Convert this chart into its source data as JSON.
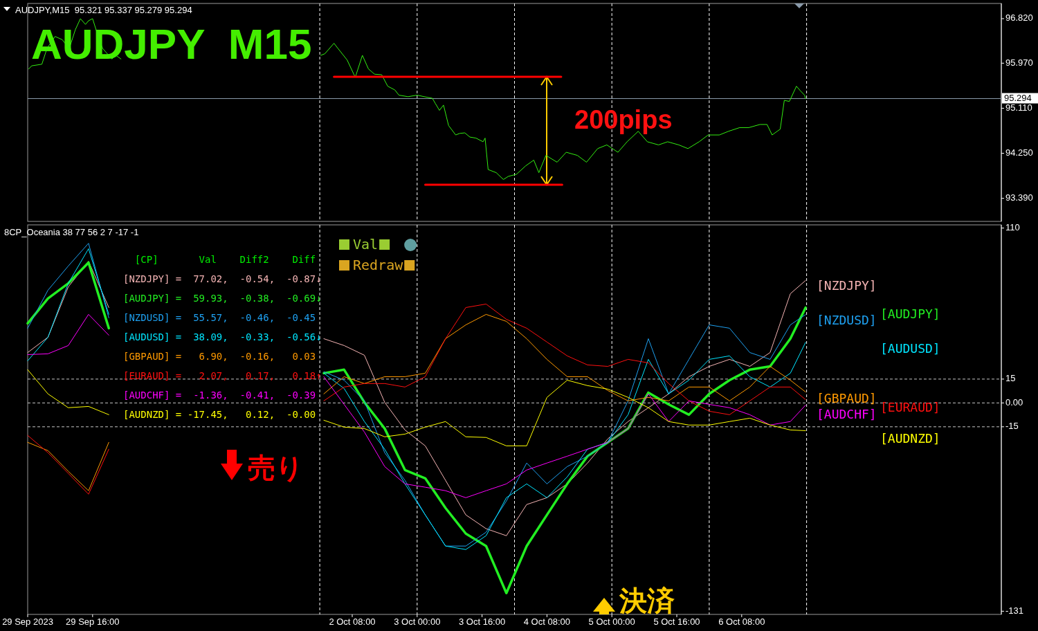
{
  "chart_data": [
    {
      "type": "line",
      "title": "AUDJPY  M15",
      "subtitle": "AUDJPY,M15  95.321 95.337 95.279 95.294",
      "tick_labels": "y",
      "xlim": [
        "2023-09-29T00:00",
        "2023-10-09T00:00"
      ],
      "ylim": [
        92.95,
        97.11
      ],
      "yticks": [
        {
          "value": 96.82,
          "label": "96.820"
        },
        {
          "value": 95.97,
          "label": "95.970"
        },
        {
          "value": 95.11,
          "label": "95.110"
        },
        {
          "value": 94.25,
          "label": "94.250"
        },
        {
          "value": 93.39,
          "label": "93.390"
        }
      ],
      "x": [
        "2023-09-29T00:15",
        "2023-09-29T01:00",
        "2023-09-29T03:30",
        "2023-09-29T04:45",
        "2023-09-29T06:45",
        "2023-09-29T08:30",
        "2023-09-29T10:15",
        "2023-09-29T11:45",
        "2023-09-29T13:00",
        "2023-09-29T14:15",
        "2023-09-29T15:00",
        "2023-09-29T16:00",
        "2023-09-29T17:30",
        "2023-09-29T18:30",
        "2023-09-29T20:45",
        "2023-09-29T21:45",
        "2023-09-29T23:00",
        "2023-10-02T00:15",
        "2023-10-02T01:15",
        "2023-10-02T03:30",
        "2023-10-02T04:30",
        "2023-10-02T06:45",
        "2023-10-02T08:45",
        "2023-10-02T10:30",
        "2023-10-02T12:00",
        "2023-10-02T13:30",
        "2023-10-02T15:15",
        "2023-10-02T16:45",
        "2023-10-02T18:30",
        "2023-10-02T19:30",
        "2023-10-02T21:45",
        "2023-10-03T00:00",
        "2023-10-03T01:45",
        "2023-10-03T03:45",
        "2023-10-03T04:30",
        "2023-10-03T05:30",
        "2023-10-03T06:30",
        "2023-10-03T07:45",
        "2023-10-03T09:30",
        "2023-10-03T10:30",
        "2023-10-03T11:45",
        "2023-10-03T13:00",
        "2023-10-03T14:30",
        "2023-10-03T16:15",
        "2023-10-03T16:45",
        "2023-10-03T17:30",
        "2023-10-03T19:30",
        "2023-10-03T21:15",
        "2023-10-03T22:30",
        "2023-10-04T00:30",
        "2023-10-04T02:45",
        "2023-10-04T04:45",
        "2023-10-04T06:00",
        "2023-10-04T07:45",
        "2023-10-04T10:30",
        "2023-10-04T12:45",
        "2023-10-04T15:30",
        "2023-10-04T17:45",
        "2023-10-04T20:30",
        "2023-10-04T22:45",
        "2023-10-05T01:30",
        "2023-10-05T03:45",
        "2023-10-05T06:30",
        "2023-10-05T08:45",
        "2023-10-05T11:30",
        "2023-10-05T13:45",
        "2023-10-05T16:30",
        "2023-10-05T18:45",
        "2023-10-05T21:30",
        "2023-10-05T23:45",
        "2023-10-06T02:30",
        "2023-10-06T04:45",
        "2023-10-06T07:30",
        "2023-10-06T09:45",
        "2023-10-06T12:30",
        "2023-10-06T14:15",
        "2023-10-06T15:30",
        "2023-10-06T16:45",
        "2023-10-06T17:30",
        "2023-10-06T18:30",
        "2023-10-06T19:45",
        "2023-10-06T21:30",
        "2023-10-06T22:30",
        "2023-10-06T23:30",
        "2023-10-06T23:45"
      ],
      "series": [
        {
          "color": "#33ee11",
          "values": [
            95.86,
            95.92,
            95.95,
            96.25,
            96.48,
            96.42,
            96.25,
            96.61,
            96.82,
            96.71,
            96.78,
            96.82,
            96.45,
            96.25,
            96.05,
            96.12,
            96.05,
            96.12,
            96.15,
            96.35,
            96.25,
            96.03,
            95.7,
            96.12,
            95.86,
            95.76,
            95.75,
            95.53,
            95.46,
            95.36,
            95.33,
            95.36,
            95.33,
            95.3,
            95.2,
            95.07,
            95.17,
            94.78,
            94.6,
            94.63,
            94.64,
            94.56,
            94.54,
            94.47,
            94.54,
            93.94,
            93.88,
            93.75,
            93.81,
            93.85,
            94.01,
            94.12,
            93.88,
            94.21,
            94.08,
            94.27,
            94.21,
            94.08,
            94.34,
            94.41,
            94.27,
            94.47,
            94.67,
            94.47,
            94.41,
            94.47,
            94.41,
            94.34,
            94.47,
            94.6,
            94.6,
            94.67,
            94.74,
            94.74,
            94.8,
            94.8,
            94.6,
            94.67,
            94.71,
            95.26,
            95.24,
            95.53,
            95.44,
            95.36,
            95.294
          ]
        },
        {
          "color": "#ff0000",
          "x": [
            "2023-10-02T03:30",
            "2023-10-04T11:30"
          ],
          "values": [
            95.71,
            95.71
          ]
        },
        {
          "color": "#ff0000",
          "x": [
            "2023-10-03T02:00",
            "2023-10-04T11:45"
          ],
          "values": [
            93.65,
            93.65
          ]
        }
      ],
      "ref_lines": [
        {
          "axis": "y",
          "value": 95.294,
          "label": "95.294",
          "color": "#8a9aaa",
          "line_style": "solid"
        },
        {
          "axis": "x",
          "value": "2023-10-02T00:00",
          "color": "#ffffff",
          "line_style": "dashed"
        },
        {
          "axis": "x",
          "value": "2023-10-03T00:00",
          "color": "#ffffff",
          "line_style": "dashed"
        },
        {
          "axis": "x",
          "value": "2023-10-04T00:00",
          "color": "#ffffff",
          "line_style": "dashed"
        },
        {
          "axis": "x",
          "value": "2023-10-05T00:00",
          "color": "#ffffff",
          "line_style": "dashed"
        },
        {
          "axis": "x",
          "value": "2023-10-06T00:00",
          "color": "#ffffff",
          "line_style": "dashed"
        },
        {
          "axis": "x",
          "value": "2023-10-07T00:00",
          "color": "#ffffff",
          "line_style": "dashed"
        }
      ],
      "annotations": [
        "200pips"
      ]
    },
    {
      "type": "line",
      "subtitle": "8CP_Oceania 38 77 56 2 7 -17 -1",
      "xlim": [
        "2023-09-29T00:00",
        "2023-10-09T00:00"
      ],
      "ylim": [
        -133,
        112
      ],
      "xticks": [
        {
          "value": "2023-09-29T00:00",
          "label": "29 Sep 2023"
        },
        {
          "value": "2023-09-29T16:00",
          "label": "29 Sep 16:00"
        },
        {
          "value": "2023-10-02T08:00",
          "label": "2 Oct 08:00"
        },
        {
          "value": "2023-10-03T00:00",
          "label": "3 Oct 00:00"
        },
        {
          "value": "2023-10-03T16:00",
          "label": "3 Oct 16:00"
        },
        {
          "value": "2023-10-04T08:00",
          "label": "4 Oct 08:00"
        },
        {
          "value": "2023-10-05T00:00",
          "label": "5 Oct 00:00"
        },
        {
          "value": "2023-10-05T16:00",
          "label": "5 Oct 16:00"
        },
        {
          "value": "2023-10-06T08:00",
          "label": "6 Oct 08:00"
        }
      ],
      "yticks": [
        110,
        15,
        {
          "value": 0,
          "label": "0.00"
        },
        -15,
        -131
      ],
      "x": [
        "2023-09-29T00:00",
        "2023-09-29T05:00",
        "2023-09-29T10:00",
        "2023-09-29T15:00",
        "2023-09-29T20:00",
        "2023-10-02T01:00",
        "2023-10-02T06:00",
        "2023-10-02T11:00",
        "2023-10-02T16:00",
        "2023-10-02T21:00",
        "2023-10-03T02:00",
        "2023-10-03T07:00",
        "2023-10-03T12:00",
        "2023-10-03T17:00",
        "2023-10-03T22:00",
        "2023-10-04T03:00",
        "2023-10-04T08:00",
        "2023-10-04T13:00",
        "2023-10-04T18:00",
        "2023-10-04T23:00",
        "2023-10-05T04:00",
        "2023-10-05T09:00",
        "2023-10-05T14:00",
        "2023-10-05T19:00",
        "2023-10-06T00:00",
        "2023-10-06T05:00",
        "2023-10-06T10:00",
        "2023-10-06T15:00",
        "2023-10-06T20:00",
        "2023-10-06T23:45"
      ],
      "series": [
        {
          "name": "[NZDJPY]",
          "color": "#f4b4b4",
          "values": [
            31.7,
            41.3,
            73.0,
            89.1,
            60.0,
            40.4,
            36.1,
            30.0,
            0.4,
            -17.0,
            -27.0,
            -48.7,
            -70.4,
            -79.1,
            -83.5,
            -63.9,
            -59.6,
            -50.9,
            -37.8,
            -22.6,
            -11.7,
            -3.0,
            5.7,
            16.5,
            23.0,
            27.4,
            23.0,
            31.7,
            68.7,
            77.02
          ]
        },
        {
          "name": "[AUDJPY]",
          "color": "#22ee22",
          "values": [
            50.0,
            65.7,
            75.2,
            88.3,
            47.0,
            18.7,
            20.9,
            0.4,
            -16.1,
            -42.2,
            -47.4,
            -66.1,
            -82.2,
            -90.0,
            -119.6,
            -90.0,
            -70.4,
            -50.9,
            -33.5,
            -24.8,
            -16.1,
            6.5,
            -0.9,
            -7.4,
            5.7,
            14.3,
            20.9,
            23.0,
            40.4,
            59.93
          ]
        },
        {
          "name": "[NZDUSD]",
          "color": "#1ea0f0",
          "values": [
            47.0,
            70.9,
            86.1,
            100.4,
            53.5,
            19.6,
            14.3,
            1.3,
            -31.3,
            -48.7,
            -70.4,
            -90.0,
            -90.0,
            -81.3,
            -61.7,
            -37.8,
            -50.9,
            -40.0,
            -33.5,
            -24.8,
            1.3,
            40.4,
            5.7,
            27.4,
            49.1,
            47.0,
            31.7,
            27.4,
            49.1,
            55.57
          ]
        },
        {
          "name": "[AUDUSD]",
          "color": "#00e5ff",
          "values": [
            26.5,
            41.3,
            75.2,
            97.0,
            55.7,
            18.7,
            9.1,
            -11.7,
            -29.1,
            -50.9,
            -70.4,
            -90.0,
            -92.2,
            -83.5,
            -59.6,
            -50.9,
            -59.6,
            -46.5,
            -29.1,
            -24.8,
            -7.4,
            27.4,
            5.7,
            14.3,
            27.4,
            29.6,
            16.5,
            10.0,
            18.7,
            38.09
          ]
        },
        {
          "name": "[GBPAUD]",
          "color": "#ff9900",
          "values": [
            -24.8,
            -30.0,
            -43.0,
            -55.2,
            -24.8,
            5.7,
            16.5,
            12.2,
            16.5,
            16.5,
            18.7,
            40.4,
            49.1,
            55.7,
            51.3,
            40.4,
            27.4,
            16.5,
            16.5,
            7.8,
            1.3,
            3.5,
            1.3,
            10.0,
            10.0,
            1.3,
            10.0,
            23.0,
            14.3,
            6.9
          ]
        },
        {
          "name": "[EURAUD]",
          "color": "#ff1010",
          "values": [
            -20.4,
            -31.3,
            -44.3,
            -57.4,
            -29.1,
            1.3,
            10.0,
            12.2,
            12.2,
            10.0,
            16.5,
            40.4,
            60.0,
            62.2,
            52.6,
            47.0,
            38.3,
            29.6,
            23.9,
            23.0,
            27.4,
            25.2,
            12.2,
            1.3,
            -5.2,
            -7.4,
            1.3,
            10.0,
            10.0,
            2.07
          ]
        },
        {
          "name": "[AUDCHF]",
          "color": "#ff00ff",
          "values": [
            30.4,
            30.9,
            36.1,
            55.7,
            42.6,
            16.5,
            -0.9,
            -18.3,
            -40.0,
            -50.9,
            -53.0,
            -55.2,
            -59.6,
            -55.2,
            -50.9,
            -42.2,
            -37.8,
            -33.5,
            -29.1,
            -24.8,
            -16.1,
            5.7,
            -11.7,
            1.3,
            -0.9,
            -3.0,
            -7.4,
            -13.9,
            -11.7,
            -1.36
          ]
        },
        {
          "name": "[AUDNZD]",
          "color": "#ffff00",
          "values": [
            20.9,
            5.7,
            -3.0,
            -2.2,
            -7.4,
            -10.9,
            -15.2,
            -16.1,
            -21.3,
            -19.6,
            -15.2,
            -11.7,
            -21.3,
            -21.7,
            -27.0,
            -27.0,
            3.5,
            14.3,
            10.9,
            8.7,
            3.5,
            -3.0,
            -11.7,
            -13.9,
            -13.9,
            -11.7,
            -9.6,
            -13.9,
            -17.0,
            -17.45
          ]
        }
      ],
      "ref_lines": [
        {
          "axis": "y",
          "value": 15,
          "color": "#c8c8c8",
          "line_style": "dashed"
        },
        {
          "axis": "y",
          "value": 0,
          "color": "#c8c8c8",
          "line_style": "dashed"
        },
        {
          "axis": "y",
          "value": -15,
          "color": "#c8c8c8",
          "line_style": "dashed"
        },
        {
          "axis": "x",
          "value": "2023-10-02T00:00",
          "color": "#ffffff",
          "line_style": "dashed"
        },
        {
          "axis": "x",
          "value": "2023-10-03T00:00",
          "color": "#ffffff",
          "line_style": "dashed"
        },
        {
          "axis": "x",
          "value": "2023-10-04T00:00",
          "color": "#ffffff",
          "line_style": "dashed"
        },
        {
          "axis": "x",
          "value": "2023-10-05T00:00",
          "color": "#ffffff",
          "line_style": "dashed"
        },
        {
          "axis": "x",
          "value": "2023-10-06T00:00",
          "color": "#ffffff",
          "line_style": "dashed"
        },
        {
          "axis": "x",
          "value": "2023-10-07T00:00",
          "color": "#ffffff",
          "line_style": "dashed"
        }
      ],
      "annotations": [
        "  [CP]       Val    Diff2    Diff",
        "[NZDJPY] =  77.02,  -0.54,  -0.87↓",
        "[AUDJPY] =  59.93,  -0.38,  -0.69↓",
        "[NZDUSD] =  55.57,  -0.46,  -0.45",
        "[AUDUSD] =  38.09,  -0.33,  -0.56↓",
        "[GBPAUD] =   6.90,  -0.16,   0.03",
        "[EURAUD] =   2.07,   0.17,   0.18↑",
        "[AUDCHF] =  -1.36,  -0.41,  -0.39",
        "[AUDNZD] = -17.45,   0.12,  -0.00",
        "Val",
        "Redraw",
        "売り",
        "決済"
      ]
    }
  ]
}
